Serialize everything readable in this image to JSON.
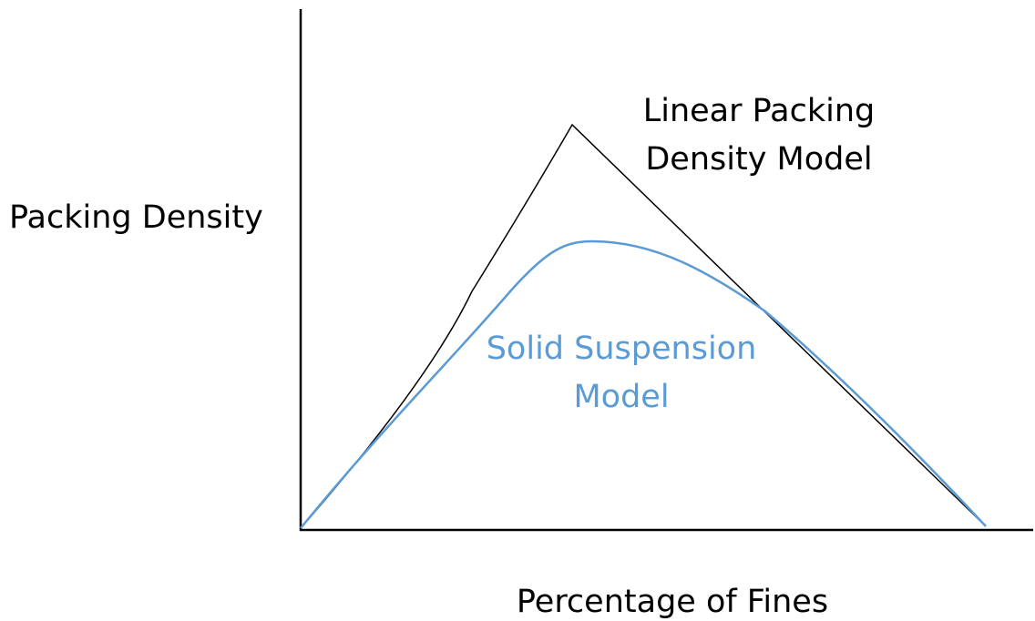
{
  "axes": {
    "y_label": "Packing Density",
    "x_label": "Percentage of Fines"
  },
  "curves": [
    {
      "label_lines": [
        "Linear Packing",
        "Density Model"
      ]
    },
    {
      "label_lines": [
        "Solid Suspension",
        "Model"
      ]
    }
  ]
}
